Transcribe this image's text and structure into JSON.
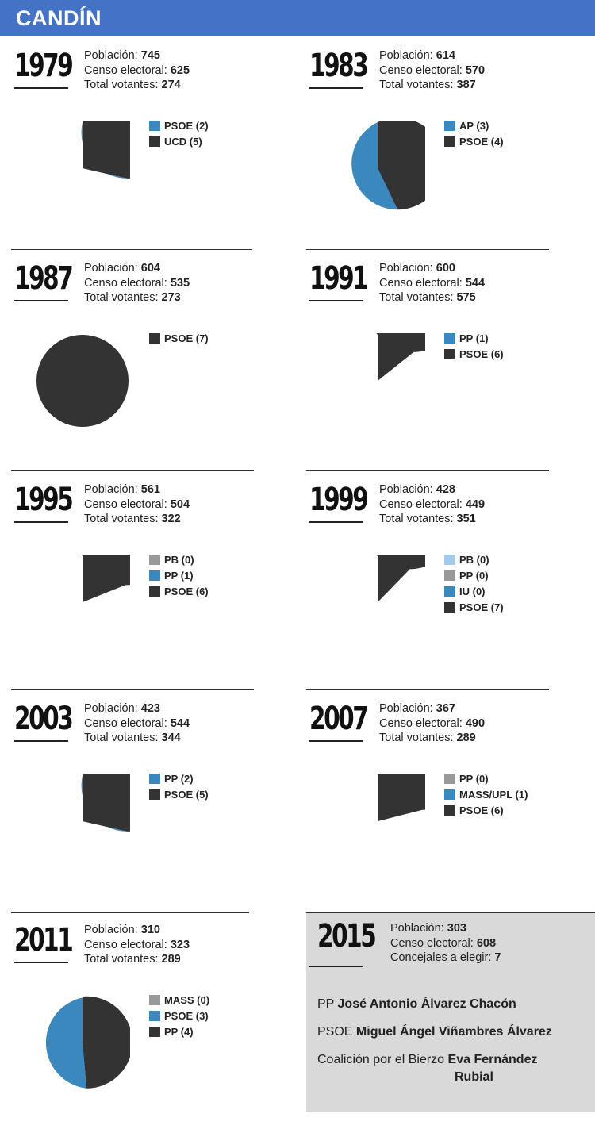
{
  "header": {
    "title": "CANDÍN"
  },
  "labels": {
    "poblacion": "Población:",
    "censo": "Censo electoral:",
    "votantes": "Total votantes:",
    "concejales": "Concejales a elegir:"
  },
  "colors": {
    "header": "#4472c4",
    "psoe": "#333333",
    "blue": "#3a88bd",
    "gray": "#999999",
    "lightblue": "#a3c9eb"
  },
  "chart_data": [
    {
      "type": "pie",
      "year": "1979",
      "poblacion": "745",
      "censo": "625",
      "votantes": "274",
      "slices": [
        {
          "label": "PSOE (2)",
          "value": 2,
          "color": "#3a88bd"
        },
        {
          "label": "UCD (5)",
          "value": 5,
          "color": "#333333"
        }
      ]
    },
    {
      "type": "pie",
      "year": "1983",
      "poblacion": "614",
      "censo": "570",
      "votantes": "387",
      "slices": [
        {
          "label": "AP (3)",
          "value": 3,
          "color": "#3a88bd"
        },
        {
          "label": "PSOE (4)",
          "value": 4,
          "color": "#333333"
        }
      ]
    },
    {
      "type": "pie",
      "year": "1987",
      "poblacion": "604",
      "censo": "535",
      "votantes": "273",
      "slices": [
        {
          "label": "PSOE (7)",
          "value": 7,
          "color": "#333333"
        }
      ]
    },
    {
      "type": "pie",
      "year": "1991",
      "poblacion": "600",
      "censo": "544",
      "votantes": "575",
      "slices": [
        {
          "label": "PP (1)",
          "value": 1,
          "color": "#3a88bd"
        },
        {
          "label": "PSOE (6)",
          "value": 6,
          "color": "#333333"
        }
      ]
    },
    {
      "type": "pie",
      "year": "1995",
      "poblacion": "561",
      "censo": "504",
      "votantes": "322",
      "slices": [
        {
          "label": "PB (0)",
          "value": 0.4,
          "color": "#999999"
        },
        {
          "label": "PP (1)",
          "value": 1,
          "color": "#3a88bd"
        },
        {
          "label": "PSOE (6)",
          "value": 6,
          "color": "#333333"
        }
      ]
    },
    {
      "type": "pie",
      "year": "1999",
      "poblacion": "428",
      "censo": "449",
      "votantes": "351",
      "slices": [
        {
          "label": "PB (0)",
          "value": 0.08,
          "color": "#a3c9eb"
        },
        {
          "label": "PP (0)",
          "value": 0.4,
          "color": "#999999"
        },
        {
          "label": "IU (0)",
          "value": 0.5,
          "color": "#3a88bd"
        },
        {
          "label": "PSOE (7)",
          "value": 7,
          "color": "#333333"
        }
      ]
    },
    {
      "type": "pie",
      "year": "2003",
      "poblacion": "423",
      "censo": "544",
      "votantes": "344",
      "slices": [
        {
          "label": "PP (2)",
          "value": 2,
          "color": "#3a88bd"
        },
        {
          "label": "PSOE (5)",
          "value": 5,
          "color": "#333333"
        }
      ]
    },
    {
      "type": "pie",
      "year": "2007",
      "poblacion": "367",
      "censo": "490",
      "votantes": "289",
      "slices": [
        {
          "label": "PP (0)",
          "value": 0.25,
          "color": "#999999"
        },
        {
          "label": "MASS/UPL (1)",
          "value": 1.35,
          "color": "#3a88bd"
        },
        {
          "label": "PSOE (6)",
          "value": 6,
          "color": "#333333"
        }
      ]
    },
    {
      "type": "pie",
      "year": "2011",
      "poblacion": "310",
      "censo": "323",
      "votantes": "289",
      "slices": [
        {
          "label": "MASS (0)",
          "value": 0.12,
          "color": "#999999"
        },
        {
          "label": "PSOE (3)",
          "value": 3,
          "color": "#3a88bd"
        },
        {
          "label": "PP (4)",
          "value": 3.3,
          "color": "#333333"
        }
      ]
    }
  ],
  "y2015": {
    "year": "2015",
    "poblacion": "303",
    "censo": "608",
    "concejales": "7",
    "candidates": [
      {
        "party": "PP",
        "name": "José Antonio Álvarez Chacón"
      },
      {
        "party": "PSOE",
        "name": "Miguel Ángel Viñambres Álvarez"
      },
      {
        "party": "Coalición por el Bierzo",
        "name_part1": "Eva Fernández",
        "name_part2": "Rubial"
      }
    ]
  }
}
